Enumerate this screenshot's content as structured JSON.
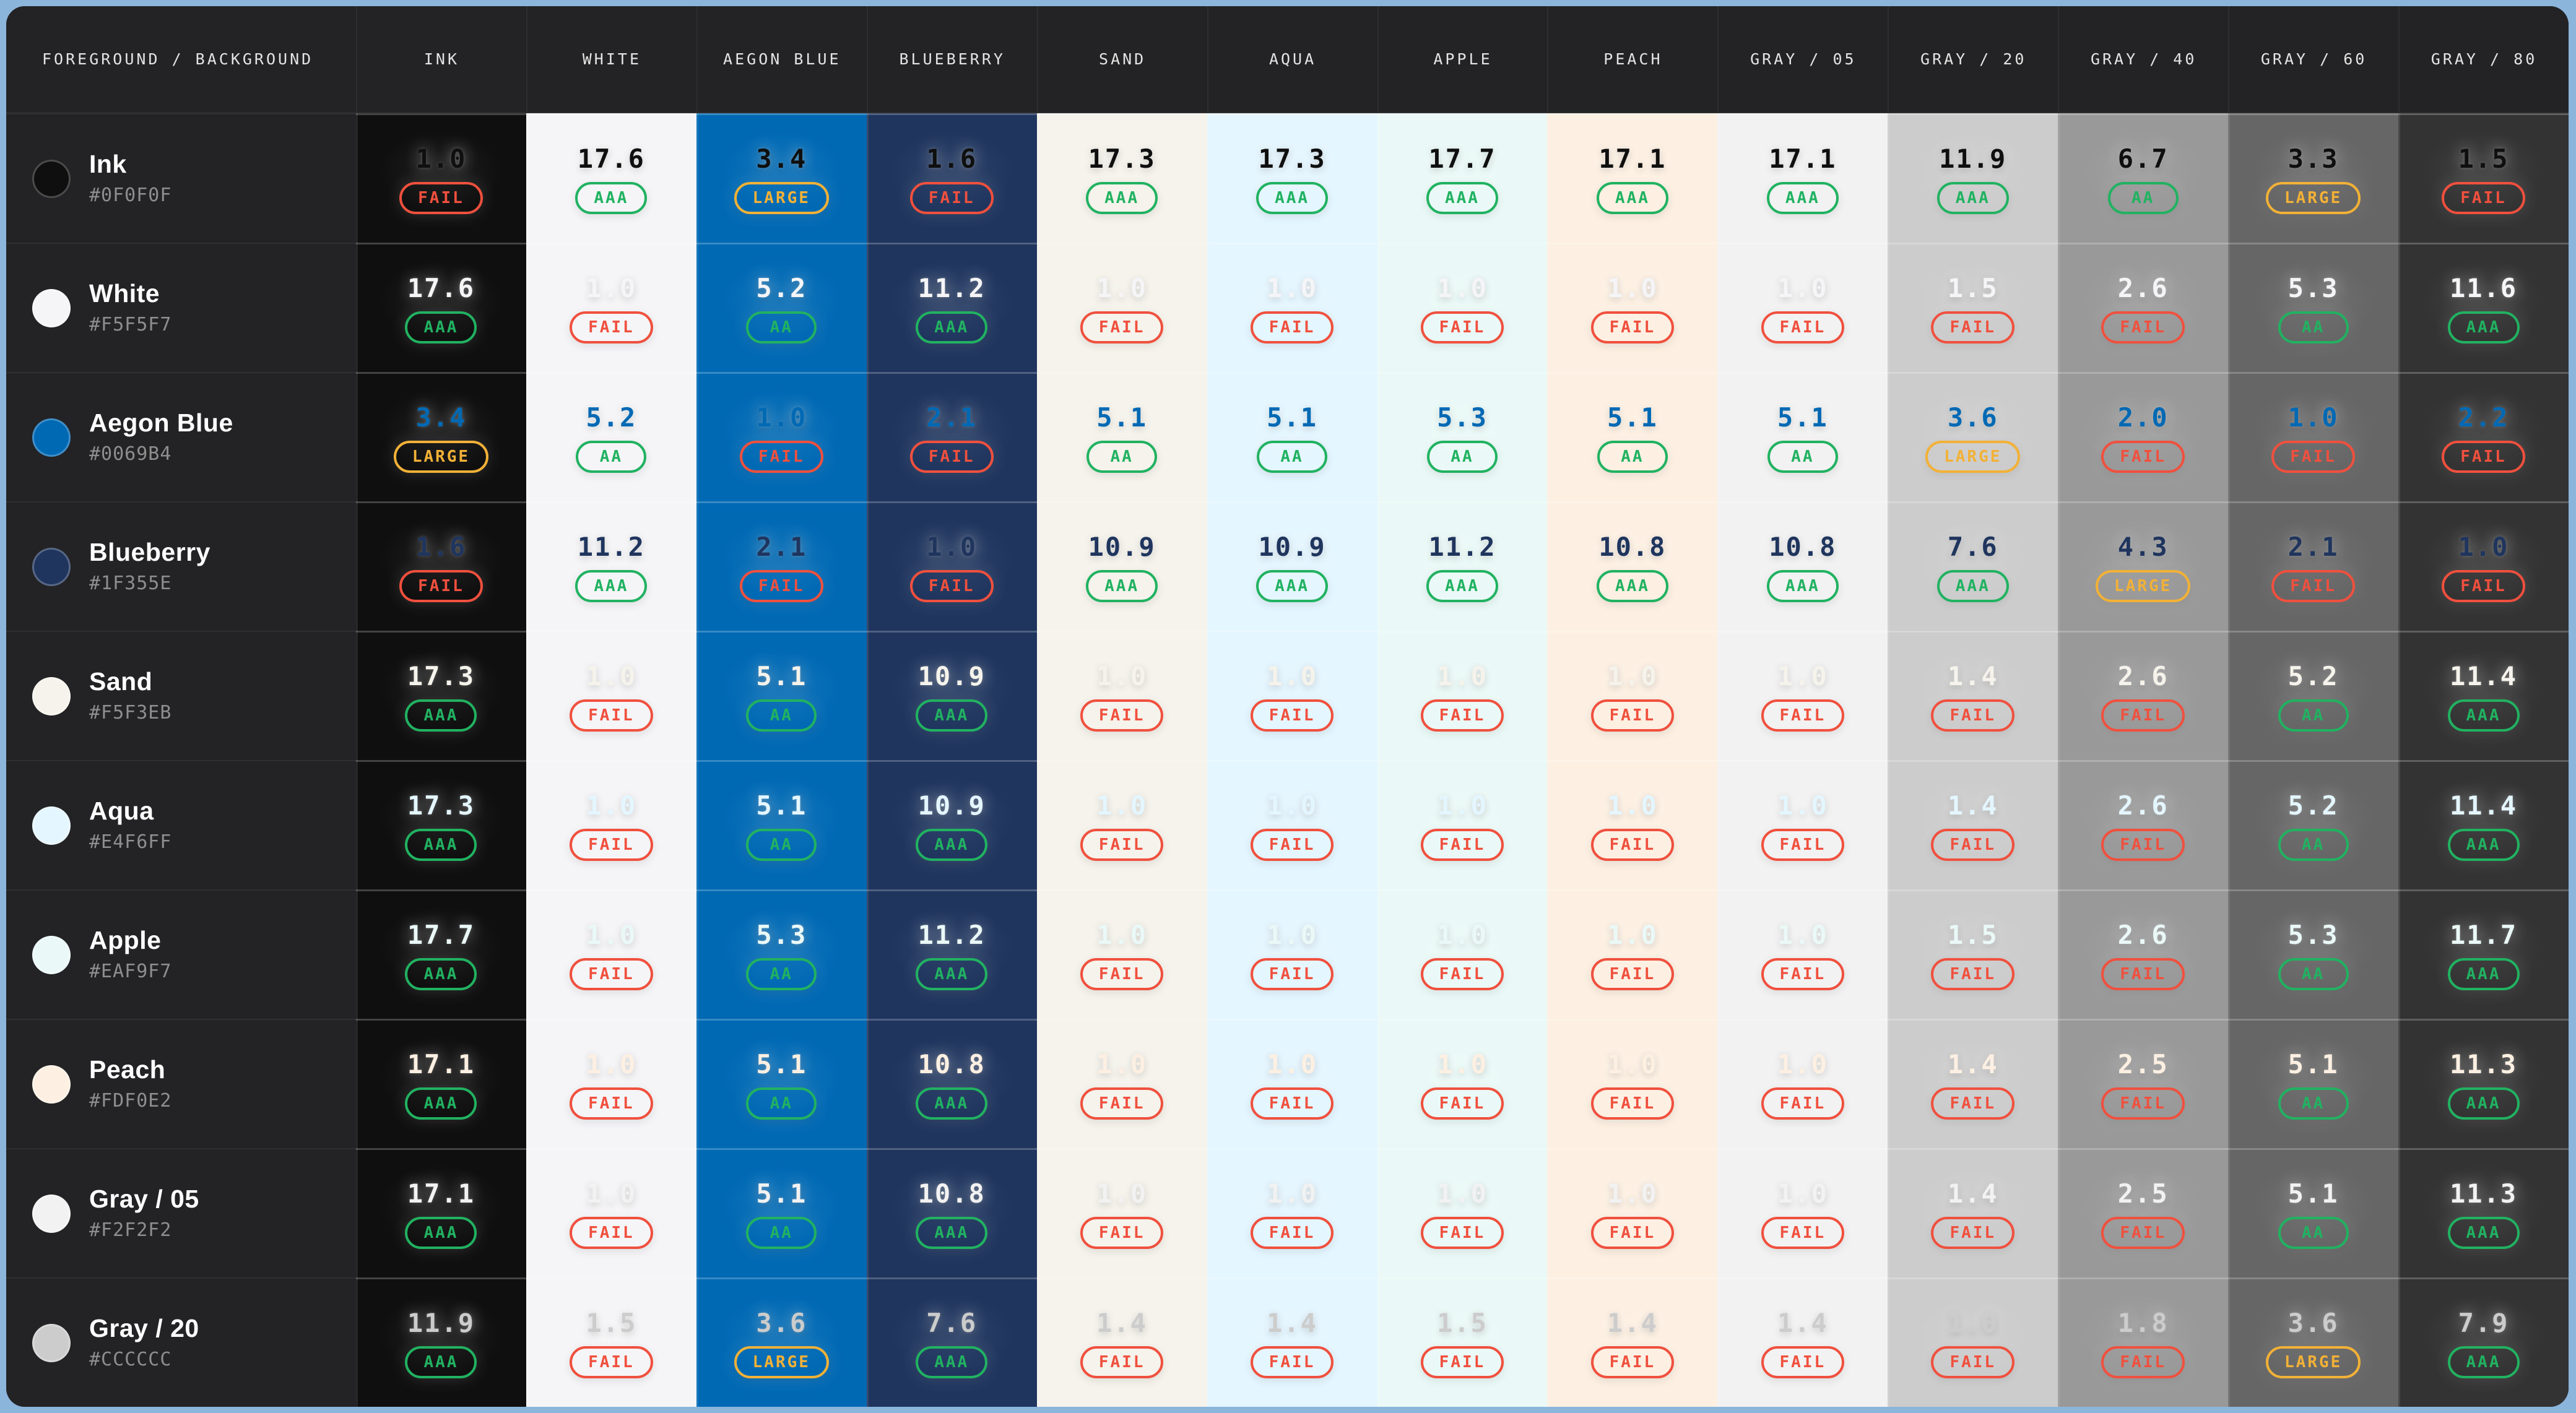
{
  "frame": {
    "outer_background": "#8CB5DC",
    "panel_background": "#232325"
  },
  "status_colors": {
    "AAA": "#21B261",
    "AA": "#21B261",
    "LARGE": "#F2B137",
    "FAIL": "#F0503E"
  },
  "header": {
    "corner_label": "FOREGROUND / BACKGROUND",
    "columns": [
      {
        "label": "INK",
        "hex": "#0F0F0F"
      },
      {
        "label": "WHITE",
        "hex": "#F5F5F7"
      },
      {
        "label": "AEGON BLUE",
        "hex": "#0069B4"
      },
      {
        "label": "BLUEBERRY",
        "hex": "#1F355E"
      },
      {
        "label": "SAND",
        "hex": "#F5F3EB"
      },
      {
        "label": "AQUA",
        "hex": "#E4F6FF"
      },
      {
        "label": "APPLE",
        "hex": "#EAF9F7"
      },
      {
        "label": "PEACH",
        "hex": "#FDF0E2"
      },
      {
        "label": "GRAY / 05",
        "hex": "#F2F2F2"
      },
      {
        "label": "GRAY / 20",
        "hex": "#CCCCCC"
      },
      {
        "label": "GRAY / 40",
        "hex": "#999999"
      },
      {
        "label": "GRAY / 60",
        "hex": "#666666"
      },
      {
        "label": "GRAY / 80",
        "hex": "#333333"
      }
    ]
  },
  "rows": [
    {
      "name": "Ink",
      "hex": "#0F0F0F",
      "cells": [
        {
          "ratio": "1.0",
          "badge": "FAIL"
        },
        {
          "ratio": "17.6",
          "badge": "AAA"
        },
        {
          "ratio": "3.4",
          "badge": "LARGE"
        },
        {
          "ratio": "1.6",
          "badge": "FAIL"
        },
        {
          "ratio": "17.3",
          "badge": "AAA"
        },
        {
          "ratio": "17.3",
          "badge": "AAA"
        },
        {
          "ratio": "17.7",
          "badge": "AAA"
        },
        {
          "ratio": "17.1",
          "badge": "AAA"
        },
        {
          "ratio": "17.1",
          "badge": "AAA"
        },
        {
          "ratio": "11.9",
          "badge": "AAA"
        },
        {
          "ratio": "6.7",
          "badge": "AA"
        },
        {
          "ratio": "3.3",
          "badge": "LARGE"
        },
        {
          "ratio": "1.5",
          "badge": "FAIL"
        }
      ]
    },
    {
      "name": "White",
      "hex": "#F5F5F7",
      "cells": [
        {
          "ratio": "17.6",
          "badge": "AAA"
        },
        {
          "ratio": "1.0",
          "badge": "FAIL"
        },
        {
          "ratio": "5.2",
          "badge": "AA"
        },
        {
          "ratio": "11.2",
          "badge": "AAA"
        },
        {
          "ratio": "1.0",
          "badge": "FAIL"
        },
        {
          "ratio": "1.0",
          "badge": "FAIL"
        },
        {
          "ratio": "1.0",
          "badge": "FAIL"
        },
        {
          "ratio": "1.0",
          "badge": "FAIL"
        },
        {
          "ratio": "1.0",
          "badge": "FAIL"
        },
        {
          "ratio": "1.5",
          "badge": "FAIL"
        },
        {
          "ratio": "2.6",
          "badge": "FAIL"
        },
        {
          "ratio": "5.3",
          "badge": "AA"
        },
        {
          "ratio": "11.6",
          "badge": "AAA"
        }
      ]
    },
    {
      "name": "Aegon Blue",
      "hex": "#0069B4",
      "cells": [
        {
          "ratio": "3.4",
          "badge": "LARGE"
        },
        {
          "ratio": "5.2",
          "badge": "AA"
        },
        {
          "ratio": "1.0",
          "badge": "FAIL"
        },
        {
          "ratio": "2.1",
          "badge": "FAIL"
        },
        {
          "ratio": "5.1",
          "badge": "AA"
        },
        {
          "ratio": "5.1",
          "badge": "AA"
        },
        {
          "ratio": "5.3",
          "badge": "AA"
        },
        {
          "ratio": "5.1",
          "badge": "AA"
        },
        {
          "ratio": "5.1",
          "badge": "AA"
        },
        {
          "ratio": "3.6",
          "badge": "LARGE"
        },
        {
          "ratio": "2.0",
          "badge": "FAIL"
        },
        {
          "ratio": "1.0",
          "badge": "FAIL"
        },
        {
          "ratio": "2.2",
          "badge": "FAIL"
        }
      ]
    },
    {
      "name": "Blueberry",
      "hex": "#1F355E",
      "cells": [
        {
          "ratio": "1.6",
          "badge": "FAIL"
        },
        {
          "ratio": "11.2",
          "badge": "AAA"
        },
        {
          "ratio": "2.1",
          "badge": "FAIL"
        },
        {
          "ratio": "1.0",
          "badge": "FAIL"
        },
        {
          "ratio": "10.9",
          "badge": "AAA"
        },
        {
          "ratio": "10.9",
          "badge": "AAA"
        },
        {
          "ratio": "11.2",
          "badge": "AAA"
        },
        {
          "ratio": "10.8",
          "badge": "AAA"
        },
        {
          "ratio": "10.8",
          "badge": "AAA"
        },
        {
          "ratio": "7.6",
          "badge": "AAA"
        },
        {
          "ratio": "4.3",
          "badge": "LARGE"
        },
        {
          "ratio": "2.1",
          "badge": "FAIL"
        },
        {
          "ratio": "1.0",
          "badge": "FAIL"
        }
      ]
    },
    {
      "name": "Sand",
      "hex": "#F5F3EB",
      "cells": [
        {
          "ratio": "17.3",
          "badge": "AAA"
        },
        {
          "ratio": "1.0",
          "badge": "FAIL"
        },
        {
          "ratio": "5.1",
          "badge": "AA"
        },
        {
          "ratio": "10.9",
          "badge": "AAA"
        },
        {
          "ratio": "1.0",
          "badge": "FAIL"
        },
        {
          "ratio": "1.0",
          "badge": "FAIL"
        },
        {
          "ratio": "1.0",
          "badge": "FAIL"
        },
        {
          "ratio": "1.0",
          "badge": "FAIL"
        },
        {
          "ratio": "1.0",
          "badge": "FAIL"
        },
        {
          "ratio": "1.4",
          "badge": "FAIL"
        },
        {
          "ratio": "2.6",
          "badge": "FAIL"
        },
        {
          "ratio": "5.2",
          "badge": "AA"
        },
        {
          "ratio": "11.4",
          "badge": "AAA"
        }
      ]
    },
    {
      "name": "Aqua",
      "hex": "#E4F6FF",
      "cells": [
        {
          "ratio": "17.3",
          "badge": "AAA"
        },
        {
          "ratio": "1.0",
          "badge": "FAIL"
        },
        {
          "ratio": "5.1",
          "badge": "AA"
        },
        {
          "ratio": "10.9",
          "badge": "AAA"
        },
        {
          "ratio": "1.0",
          "badge": "FAIL"
        },
        {
          "ratio": "1.0",
          "badge": "FAIL"
        },
        {
          "ratio": "1.0",
          "badge": "FAIL"
        },
        {
          "ratio": "1.0",
          "badge": "FAIL"
        },
        {
          "ratio": "1.0",
          "badge": "FAIL"
        },
        {
          "ratio": "1.4",
          "badge": "FAIL"
        },
        {
          "ratio": "2.6",
          "badge": "FAIL"
        },
        {
          "ratio": "5.2",
          "badge": "AA"
        },
        {
          "ratio": "11.4",
          "badge": "AAA"
        }
      ]
    },
    {
      "name": "Apple",
      "hex": "#EAF9F7",
      "cells": [
        {
          "ratio": "17.7",
          "badge": "AAA"
        },
        {
          "ratio": "1.0",
          "badge": "FAIL"
        },
        {
          "ratio": "5.3",
          "badge": "AA"
        },
        {
          "ratio": "11.2",
          "badge": "AAA"
        },
        {
          "ratio": "1.0",
          "badge": "FAIL"
        },
        {
          "ratio": "1.0",
          "badge": "FAIL"
        },
        {
          "ratio": "1.0",
          "badge": "FAIL"
        },
        {
          "ratio": "1.0",
          "badge": "FAIL"
        },
        {
          "ratio": "1.0",
          "badge": "FAIL"
        },
        {
          "ratio": "1.5",
          "badge": "FAIL"
        },
        {
          "ratio": "2.6",
          "badge": "FAIL"
        },
        {
          "ratio": "5.3",
          "badge": "AA"
        },
        {
          "ratio": "11.7",
          "badge": "AAA"
        }
      ]
    },
    {
      "name": "Peach",
      "hex": "#FDF0E2",
      "cells": [
        {
          "ratio": "17.1",
          "badge": "AAA"
        },
        {
          "ratio": "1.0",
          "badge": "FAIL"
        },
        {
          "ratio": "5.1",
          "badge": "AA"
        },
        {
          "ratio": "10.8",
          "badge": "AAA"
        },
        {
          "ratio": "1.0",
          "badge": "FAIL"
        },
        {
          "ratio": "1.0",
          "badge": "FAIL"
        },
        {
          "ratio": "1.0",
          "badge": "FAIL"
        },
        {
          "ratio": "1.0",
          "badge": "FAIL"
        },
        {
          "ratio": "1.0",
          "badge": "FAIL"
        },
        {
          "ratio": "1.4",
          "badge": "FAIL"
        },
        {
          "ratio": "2.5",
          "badge": "FAIL"
        },
        {
          "ratio": "5.1",
          "badge": "AA"
        },
        {
          "ratio": "11.3",
          "badge": "AAA"
        }
      ]
    },
    {
      "name": "Gray / 05",
      "hex": "#F2F2F2",
      "cells": [
        {
          "ratio": "17.1",
          "badge": "AAA"
        },
        {
          "ratio": "1.0",
          "badge": "FAIL"
        },
        {
          "ratio": "5.1",
          "badge": "AA"
        },
        {
          "ratio": "10.8",
          "badge": "AAA"
        },
        {
          "ratio": "1.0",
          "badge": "FAIL"
        },
        {
          "ratio": "1.0",
          "badge": "FAIL"
        },
        {
          "ratio": "1.0",
          "badge": "FAIL"
        },
        {
          "ratio": "1.0",
          "badge": "FAIL"
        },
        {
          "ratio": "1.0",
          "badge": "FAIL"
        },
        {
          "ratio": "1.4",
          "badge": "FAIL"
        },
        {
          "ratio": "2.5",
          "badge": "FAIL"
        },
        {
          "ratio": "5.1",
          "badge": "AA"
        },
        {
          "ratio": "11.3",
          "badge": "AAA"
        }
      ]
    },
    {
      "name": "Gray / 20",
      "hex": "#CCCCCC",
      "cells": [
        {
          "ratio": "11.9",
          "badge": "AAA"
        },
        {
          "ratio": "1.5",
          "badge": "FAIL"
        },
        {
          "ratio": "3.6",
          "badge": "LARGE"
        },
        {
          "ratio": "7.6",
          "badge": "AAA"
        },
        {
          "ratio": "1.4",
          "badge": "FAIL"
        },
        {
          "ratio": "1.4",
          "badge": "FAIL"
        },
        {
          "ratio": "1.5",
          "badge": "FAIL"
        },
        {
          "ratio": "1.4",
          "badge": "FAIL"
        },
        {
          "ratio": "1.4",
          "badge": "FAIL"
        },
        {
          "ratio": "1.0",
          "badge": "FAIL"
        },
        {
          "ratio": "1.8",
          "badge": "FAIL"
        },
        {
          "ratio": "3.6",
          "badge": "LARGE"
        },
        {
          "ratio": "7.9",
          "badge": "AAA"
        }
      ]
    }
  ]
}
